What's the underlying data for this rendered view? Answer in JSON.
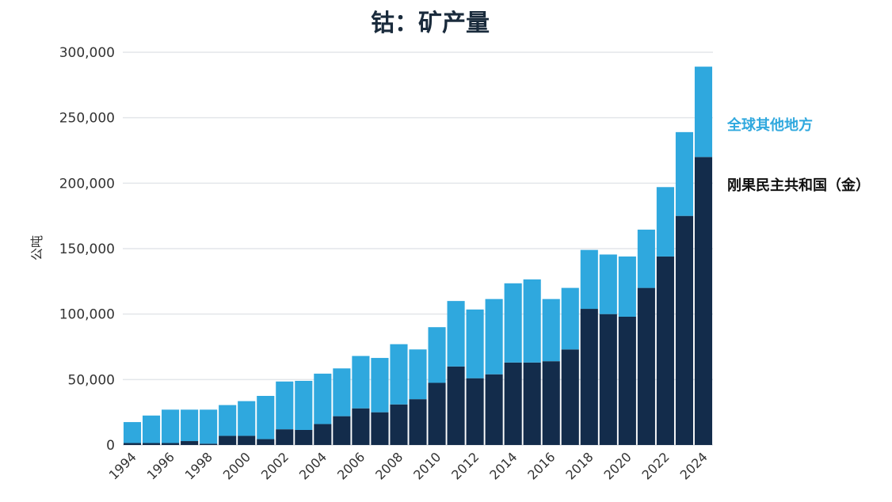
{
  "chart_data": {
    "type": "bar",
    "stacked": true,
    "title": "钴：矿产量",
    "ylabel": "公吨",
    "xlabel": "",
    "ylim": [
      0,
      300000
    ],
    "yticks": [
      0,
      50000,
      100000,
      150000,
      200000,
      250000,
      300000
    ],
    "ytick_labels": [
      "0",
      "50,000",
      "100,000",
      "150,000",
      "200,000",
      "250,000",
      "300,000"
    ],
    "grid": true,
    "categories": [
      "1994",
      "1995",
      "1996",
      "1997",
      "1998",
      "1999",
      "2000",
      "2001",
      "2002",
      "2003",
      "2004",
      "2005",
      "2006",
      "2007",
      "2008",
      "2009",
      "2010",
      "2011",
      "2012",
      "2013",
      "2014",
      "2015",
      "2016",
      "2017",
      "2018",
      "2019",
      "2020",
      "2021",
      "2022",
      "2023",
      "2024"
    ],
    "x_tick_labels": [
      "1994",
      "",
      "1996",
      "",
      "1998",
      "",
      "2000",
      "",
      "2002",
      "",
      "2004",
      "",
      "2006",
      "",
      "2008",
      "",
      "2010",
      "",
      "2012",
      "",
      "2014",
      "",
      "2016",
      "",
      "2018",
      "",
      "2020",
      "",
      "2022",
      "",
      "2024"
    ],
    "series": [
      {
        "name": "刚果民主共和国（金）",
        "color": "#132c4b",
        "values": [
          1500,
          1500,
          1500,
          3000,
          1000,
          7000,
          7000,
          4500,
          12000,
          11500,
          16000,
          22000,
          28000,
          25000,
          31000,
          35000,
          47500,
          60000,
          51000,
          54000,
          63000,
          63000,
          64000,
          73000,
          104000,
          100000,
          98000,
          120000,
          144000,
          175000,
          220000
        ]
      },
      {
        "name": "全球其他地方",
        "color": "#2fa8de",
        "values": [
          16000,
          21000,
          25500,
          24000,
          26000,
          23500,
          26500,
          33000,
          36500,
          37500,
          38500,
          36500,
          40000,
          41500,
          46000,
          38000,
          42500,
          50000,
          52500,
          57500,
          60500,
          63500,
          47500,
          47000,
          45000,
          45500,
          46000,
          44500,
          53000,
          64000,
          69000
        ]
      }
    ],
    "legend": [
      {
        "label": "全球其他地方",
        "color": "#2fa8de"
      },
      {
        "label": "刚果民主共和国（金）",
        "color": "#132c4b"
      }
    ],
    "legend_position": "right"
  }
}
